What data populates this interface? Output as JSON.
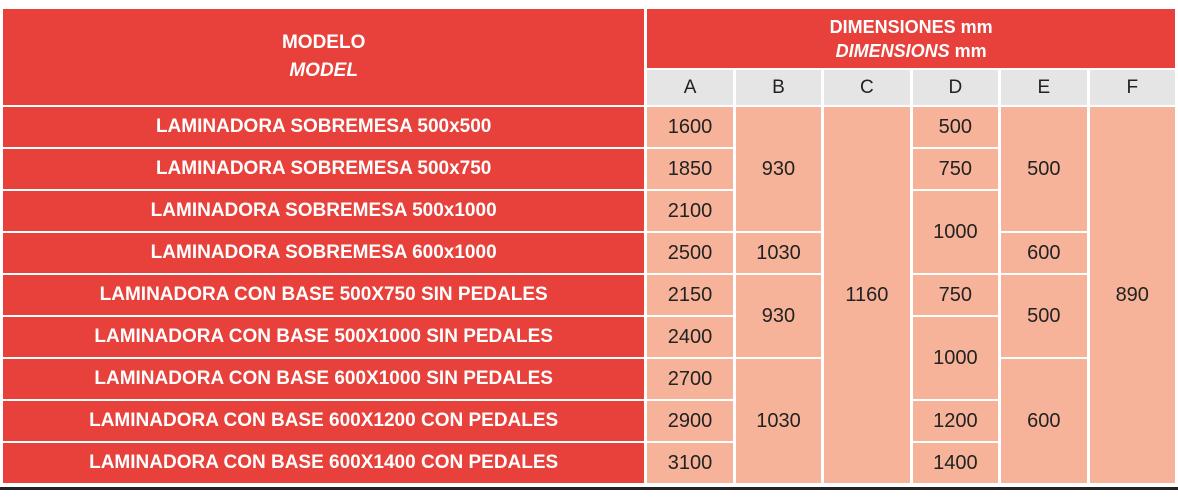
{
  "header": {
    "model_es": "MODELO",
    "model_en": "MODEL",
    "dimensions_es": "DIMENSIONES mm",
    "dimensions_en_italic": "DIMENSIONS",
    "dimensions_en_unit": " mm"
  },
  "columns": [
    "A",
    "B",
    "C",
    "D",
    "E",
    "F"
  ],
  "models": [
    "LAMINADORA SOBREMESA 500x500",
    "LAMINADORA SOBREMESA 500x750",
    "LAMINADORA SOBREMESA 500x1000",
    "LAMINADORA SOBREMESA 600x1000",
    "LAMINADORA CON BASE 500X750 SIN PEDALES",
    "LAMINADORA CON BASE 500X1000 SIN PEDALES",
    "LAMINADORA CON BASE 600X1000 SIN PEDALES",
    "LAMINADORA CON BASE 600X1200 CON PEDALES",
    "LAMINADORA CON BASE 600X1400 CON PEDALES"
  ],
  "A": [
    "1600",
    "1850",
    "2100",
    "2500",
    "2150",
    "2400",
    "2700",
    "2900",
    "3100"
  ],
  "B": [
    "930",
    "1030",
    "930",
    "1030"
  ],
  "C": "1160",
  "D": [
    "500",
    "750",
    "1000",
    "750",
    "1000",
    "1200",
    "1400"
  ],
  "E": [
    "500",
    "600",
    "500",
    "600"
  ],
  "F": "890"
}
